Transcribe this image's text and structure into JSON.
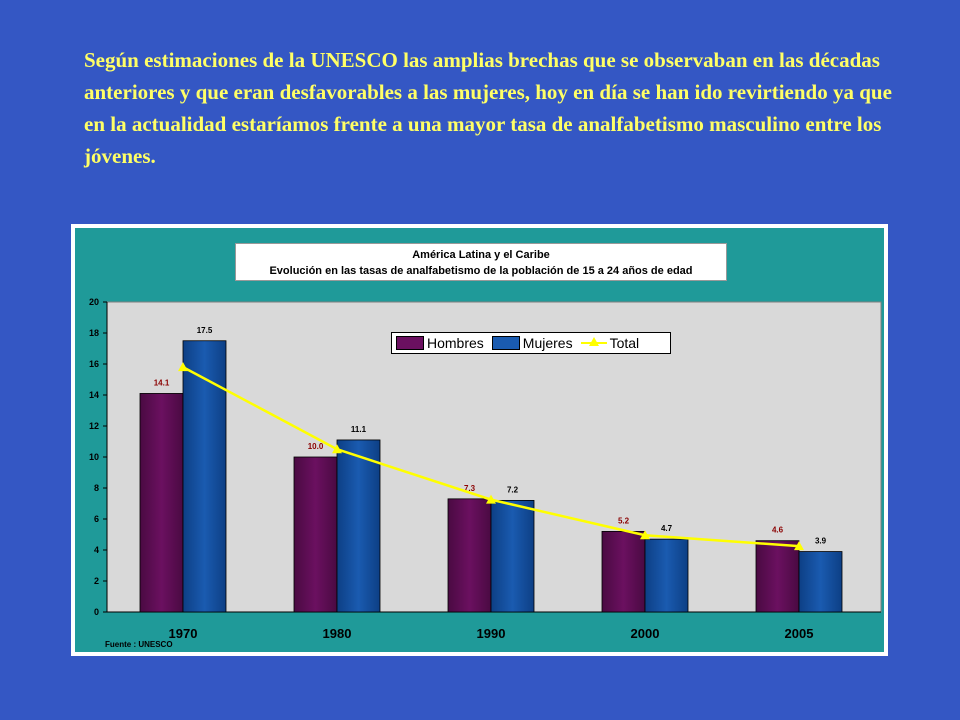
{
  "intro_text": "Según estimaciones de la UNESCO las amplias brechas que se observaban en las décadas anteriores y que  eran desfavorables a las mujeres, hoy en día se han ido revirtiendo ya que en la actualidad estaríamos frente a una mayor tasa de analfabetismo masculino entre los jóvenes.",
  "colors": {
    "background": "#3457c4",
    "intro_text": "#ffff66",
    "chart_panel": "#1f9a99",
    "plot_area": "#d9d9d9",
    "hombres": "#6b1060",
    "mujeres": "#1a5bb0",
    "total": "#ffff00",
    "hombres_label": "#8b0000"
  },
  "chart_data": {
    "type": "bar",
    "title": "América Latina y el Caribe",
    "subtitle": "Evolución en las tasas de analfabetismo de la población de 15 a 24 años de edad",
    "categories": [
      "1970",
      "1980",
      "1990",
      "2000",
      "2005"
    ],
    "series": [
      {
        "name": "Hombres",
        "type": "bar",
        "values": [
          14.1,
          10.0,
          7.3,
          5.2,
          4.6
        ],
        "labels": [
          "14.1",
          "10.0",
          "7.3",
          "5.2",
          "4.6"
        ]
      },
      {
        "name": "Mujeres",
        "type": "bar",
        "values": [
          17.5,
          11.1,
          7.2,
          4.7,
          3.9
        ],
        "labels": [
          "17.5",
          "11.1",
          "7.2",
          "4.7",
          "3.9"
        ]
      },
      {
        "name": "Total",
        "type": "line",
        "values": [
          15.8,
          10.5,
          7.25,
          4.95,
          4.25
        ]
      }
    ],
    "ylim": [
      0,
      20
    ],
    "yticks": [
      "0",
      "2",
      "4",
      "6",
      "8",
      "10",
      "12",
      "14",
      "16",
      "18",
      "20"
    ],
    "legend": "top-right",
    "grid": false,
    "source": "Fuente : UNESCO"
  }
}
